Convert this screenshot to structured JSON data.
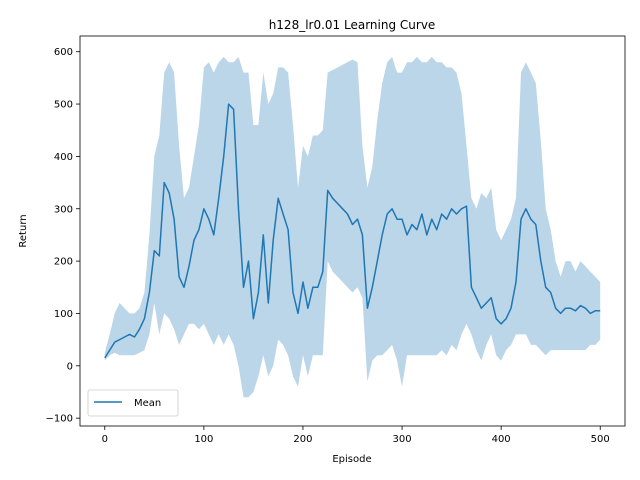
{
  "chart_data": {
    "type": "line",
    "title": "h128_lr0.01 Learning Curve",
    "xlabel": "Episode",
    "ylabel": "Return",
    "xlim": [
      -25,
      525
    ],
    "ylim": [
      -115,
      630
    ],
    "xticks": [
      0,
      100,
      200,
      300,
      400,
      500
    ],
    "yticks": [
      -100,
      0,
      100,
      200,
      300,
      400,
      500,
      600
    ],
    "grid": false,
    "legend": {
      "position": "lower-left",
      "entries": [
        "Mean"
      ]
    },
    "colors": {
      "line": "#1f77b4",
      "band": "#1f77b4",
      "band_opacity": 0.3
    },
    "series": [
      {
        "name": "Mean",
        "x": [
          0,
          5,
          10,
          15,
          20,
          25,
          30,
          35,
          40,
          45,
          50,
          55,
          60,
          65,
          70,
          75,
          80,
          85,
          90,
          95,
          100,
          105,
          110,
          115,
          120,
          125,
          130,
          135,
          140,
          145,
          150,
          155,
          160,
          165,
          170,
          175,
          180,
          185,
          190,
          195,
          200,
          205,
          210,
          215,
          220,
          225,
          230,
          235,
          240,
          245,
          250,
          255,
          260,
          265,
          270,
          275,
          280,
          285,
          290,
          295,
          300,
          305,
          310,
          315,
          320,
          325,
          330,
          335,
          340,
          345,
          350,
          355,
          360,
          365,
          370,
          375,
          380,
          385,
          390,
          395,
          400,
          405,
          410,
          415,
          420,
          425,
          430,
          435,
          440,
          445,
          450,
          455,
          460,
          465,
          470,
          475,
          480,
          485,
          490,
          495,
          500
        ],
        "y": [
          15,
          30,
          45,
          50,
          55,
          60,
          55,
          70,
          90,
          140,
          220,
          210,
          350,
          330,
          280,
          170,
          150,
          190,
          240,
          260,
          300,
          280,
          250,
          320,
          400,
          500,
          490,
          300,
          150,
          200,
          90,
          140,
          250,
          120,
          240,
          320,
          290,
          260,
          140,
          100,
          160,
          110,
          150,
          150,
          180,
          335,
          320,
          310,
          300,
          290,
          270,
          280,
          250,
          110,
          150,
          200,
          250,
          290,
          300,
          280,
          280,
          250,
          270,
          260,
          290,
          250,
          280,
          260,
          290,
          280,
          300,
          290,
          300,
          305,
          150,
          130,
          110,
          120,
          130,
          90,
          80,
          90,
          110,
          160,
          280,
          300,
          280,
          270,
          200,
          150,
          140,
          110,
          100,
          110,
          110,
          105,
          115,
          110,
          100,
          105,
          105
        ],
        "lower": [
          10,
          20,
          25,
          20,
          20,
          20,
          20,
          25,
          30,
          60,
          120,
          60,
          100,
          90,
          70,
          40,
          60,
          80,
          80,
          70,
          80,
          60,
          40,
          60,
          40,
          60,
          40,
          0,
          -60,
          -60,
          -50,
          -20,
          20,
          -20,
          0,
          50,
          40,
          20,
          -20,
          -40,
          20,
          -20,
          20,
          20,
          20,
          200,
          180,
          170,
          160,
          150,
          140,
          150,
          130,
          -30,
          10,
          20,
          20,
          30,
          40,
          10,
          -40,
          20,
          20,
          20,
          20,
          20,
          20,
          20,
          30,
          20,
          40,
          30,
          60,
          80,
          60,
          30,
          10,
          40,
          60,
          20,
          10,
          30,
          40,
          60,
          60,
          60,
          40,
          40,
          30,
          20,
          30,
          30,
          30,
          30,
          30,
          30,
          30,
          30,
          40,
          40,
          50
        ],
        "upper": [
          25,
          60,
          100,
          120,
          110,
          100,
          100,
          110,
          140,
          250,
          400,
          440,
          560,
          580,
          560,
          420,
          320,
          340,
          400,
          460,
          570,
          580,
          560,
          580,
          590,
          580,
          580,
          590,
          560,
          560,
          460,
          460,
          560,
          500,
          520,
          570,
          570,
          560,
          460,
          340,
          420,
          400,
          440,
          440,
          450,
          560,
          565,
          570,
          575,
          580,
          585,
          580,
          420,
          340,
          380,
          470,
          540,
          580,
          590,
          560,
          560,
          580,
          580,
          590,
          580,
          580,
          590,
          580,
          580,
          570,
          570,
          560,
          520,
          420,
          320,
          300,
          330,
          320,
          340,
          260,
          240,
          260,
          280,
          320,
          560,
          580,
          560,
          540,
          430,
          300,
          260,
          200,
          170,
          200,
          200,
          180,
          200,
          190,
          180,
          170,
          160
        ]
      }
    ]
  }
}
